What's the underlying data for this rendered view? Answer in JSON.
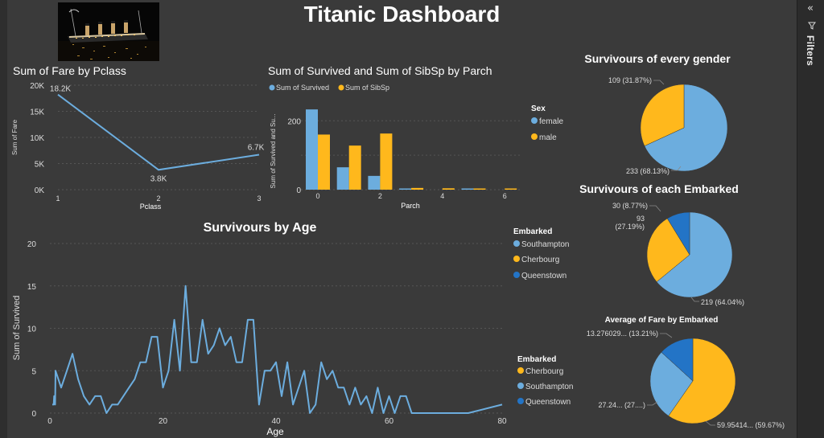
{
  "dashboard": {
    "title": "Titanic Dashboard"
  },
  "filters_pane": {
    "label": "Filters",
    "collapse_icon": "double-chevron-left-icon",
    "filter_icon": "funnel-icon"
  },
  "logo": {
    "icon": "titanic-ship-photo"
  },
  "colors": {
    "blue": "#6CADDE",
    "yellow": "#FFB81C",
    "dark_blue": "#2374C6",
    "background": "#3a3a3a",
    "grid": "#555555"
  },
  "chart_data": [
    {
      "id": "fare_by_pclass",
      "type": "line",
      "title": "Sum of Fare by Pclass",
      "xlabel": "Pclass",
      "ylabel": "Sum of Fare",
      "x": [
        1,
        2,
        3
      ],
      "values": [
        18200,
        3800,
        6700
      ],
      "data_labels": [
        "18.2K",
        "3.8K",
        "6.7K"
      ],
      "xlim": [
        1,
        3
      ],
      "ylim": [
        0,
        20000
      ],
      "yticks": [
        0,
        5000,
        10000,
        15000,
        20000
      ],
      "ytick_labels": [
        "0K",
        "5K",
        "10K",
        "15K",
        "20K"
      ],
      "xticks": [
        1,
        2,
        3
      ],
      "xtick_labels": [
        "1",
        "2",
        "3"
      ],
      "grid": true
    },
    {
      "id": "survived_sibsp_by_parch",
      "type": "bar",
      "title": "Sum of Survived and Sum of SibSp by Parch",
      "xlabel": "Parch",
      "ylabel": "Sum of Survived and Su...",
      "categories": [
        0,
        1,
        2,
        3,
        4,
        5,
        6
      ],
      "series": [
        {
          "name": "Sum of Survived",
          "color": "#6CADDE",
          "values": [
            233,
            65,
            40,
            3,
            0,
            1,
            0
          ]
        },
        {
          "name": "Sum of SibSp",
          "color": "#FFB81C",
          "values": [
            160,
            128,
            163,
            5,
            4,
            3,
            2
          ]
        }
      ],
      "ylim": [
        0,
        280
      ],
      "yticks": [
        0,
        100,
        200
      ],
      "ytick_labels": [
        "0",
        "",
        "200"
      ],
      "xticks": [
        0,
        2,
        4,
        6
      ],
      "xtick_labels": [
        "0",
        "2",
        "4",
        "6"
      ],
      "legend": "top-left",
      "grid": true
    },
    {
      "id": "survivors_by_age",
      "type": "line",
      "title": "Survivours by Age",
      "xlabel": "Age",
      "ylabel": "Sum of Survived",
      "x": [
        0.42,
        0.67,
        0.75,
        0.83,
        0.92,
        1,
        2,
        3,
        4,
        5,
        6,
        7,
        8,
        9,
        10,
        11,
        12,
        13,
        14,
        15,
        16,
        17,
        18,
        19,
        20,
        21,
        22,
        23,
        24,
        25,
        26,
        27,
        28,
        29,
        30,
        31,
        32,
        33,
        34,
        35,
        36,
        37,
        38,
        39,
        40,
        41,
        42,
        43,
        44,
        45,
        46,
        47,
        48,
        49,
        50,
        51,
        52,
        53,
        54,
        55,
        56,
        57,
        58,
        59,
        60,
        61,
        62,
        63,
        64,
        65,
        66,
        70,
        71,
        74,
        80
      ],
      "values": [
        1,
        1,
        2,
        2,
        1,
        5,
        3,
        5,
        7,
        4,
        2,
        1,
        2,
        2,
        0,
        1,
        1,
        2,
        3,
        4,
        6,
        6,
        9,
        9,
        3,
        5,
        11,
        5,
        15,
        6,
        6,
        11,
        7,
        8,
        10,
        8,
        9,
        6,
        6,
        11,
        11,
        1,
        5,
        5,
        6,
        2,
        6,
        1,
        3,
        5,
        0,
        1,
        6,
        4,
        5,
        3,
        3,
        1,
        3,
        1,
        2,
        0,
        3,
        0,
        2,
        0,
        2,
        2,
        0,
        0,
        0,
        0,
        0,
        0,
        1
      ],
      "xlim": [
        0,
        80
      ],
      "ylim": [
        0,
        20
      ],
      "yticks": [
        0,
        5,
        10,
        15,
        20
      ],
      "xticks": [
        0,
        20,
        40,
        60,
        80
      ],
      "grid": true
    },
    {
      "id": "survivors_by_gender",
      "type": "pie",
      "title": "Survivours of every gender",
      "legend_title": "Sex",
      "labels": [
        "female",
        "male"
      ],
      "values": [
        233,
        109
      ],
      "percent": [
        68.13,
        31.87
      ],
      "data_labels": [
        "233 (68.13%)",
        "109 (31.87%)"
      ],
      "colors": [
        "#6CADDE",
        "#FFB81C"
      ],
      "legend": "left"
    },
    {
      "id": "survivors_by_embarked",
      "type": "pie",
      "title": "Survivours of each Embarked",
      "legend_title": "Embarked",
      "labels": [
        "Southampton",
        "Cherbourg",
        "Queenstown"
      ],
      "values": [
        219,
        93,
        30
      ],
      "percent": [
        64.04,
        27.19,
        8.77
      ],
      "data_labels": [
        "219 (64.04%)",
        "93 (27.19%)",
        "30 (8.77%)"
      ],
      "colors": [
        "#6CADDE",
        "#FFB81C",
        "#2374C6"
      ],
      "legend": "left"
    },
    {
      "id": "avg_fare_by_embarked",
      "type": "pie",
      "title": "Average of Fare by Embarked",
      "legend_title": "Embarked",
      "labels": [
        "Cherbourg",
        "Southampton",
        "Queenstown"
      ],
      "values": [
        59.95414,
        27.24,
        13.276029
      ],
      "percent": [
        59.67,
        27.12,
        13.21
      ],
      "data_labels": [
        "59.95414... (59.67%)",
        "27.24... (27....)",
        "13.276029... (13.21%)"
      ],
      "colors": [
        "#FFB81C",
        "#6CADDE",
        "#2374C6"
      ],
      "legend": "left"
    }
  ]
}
